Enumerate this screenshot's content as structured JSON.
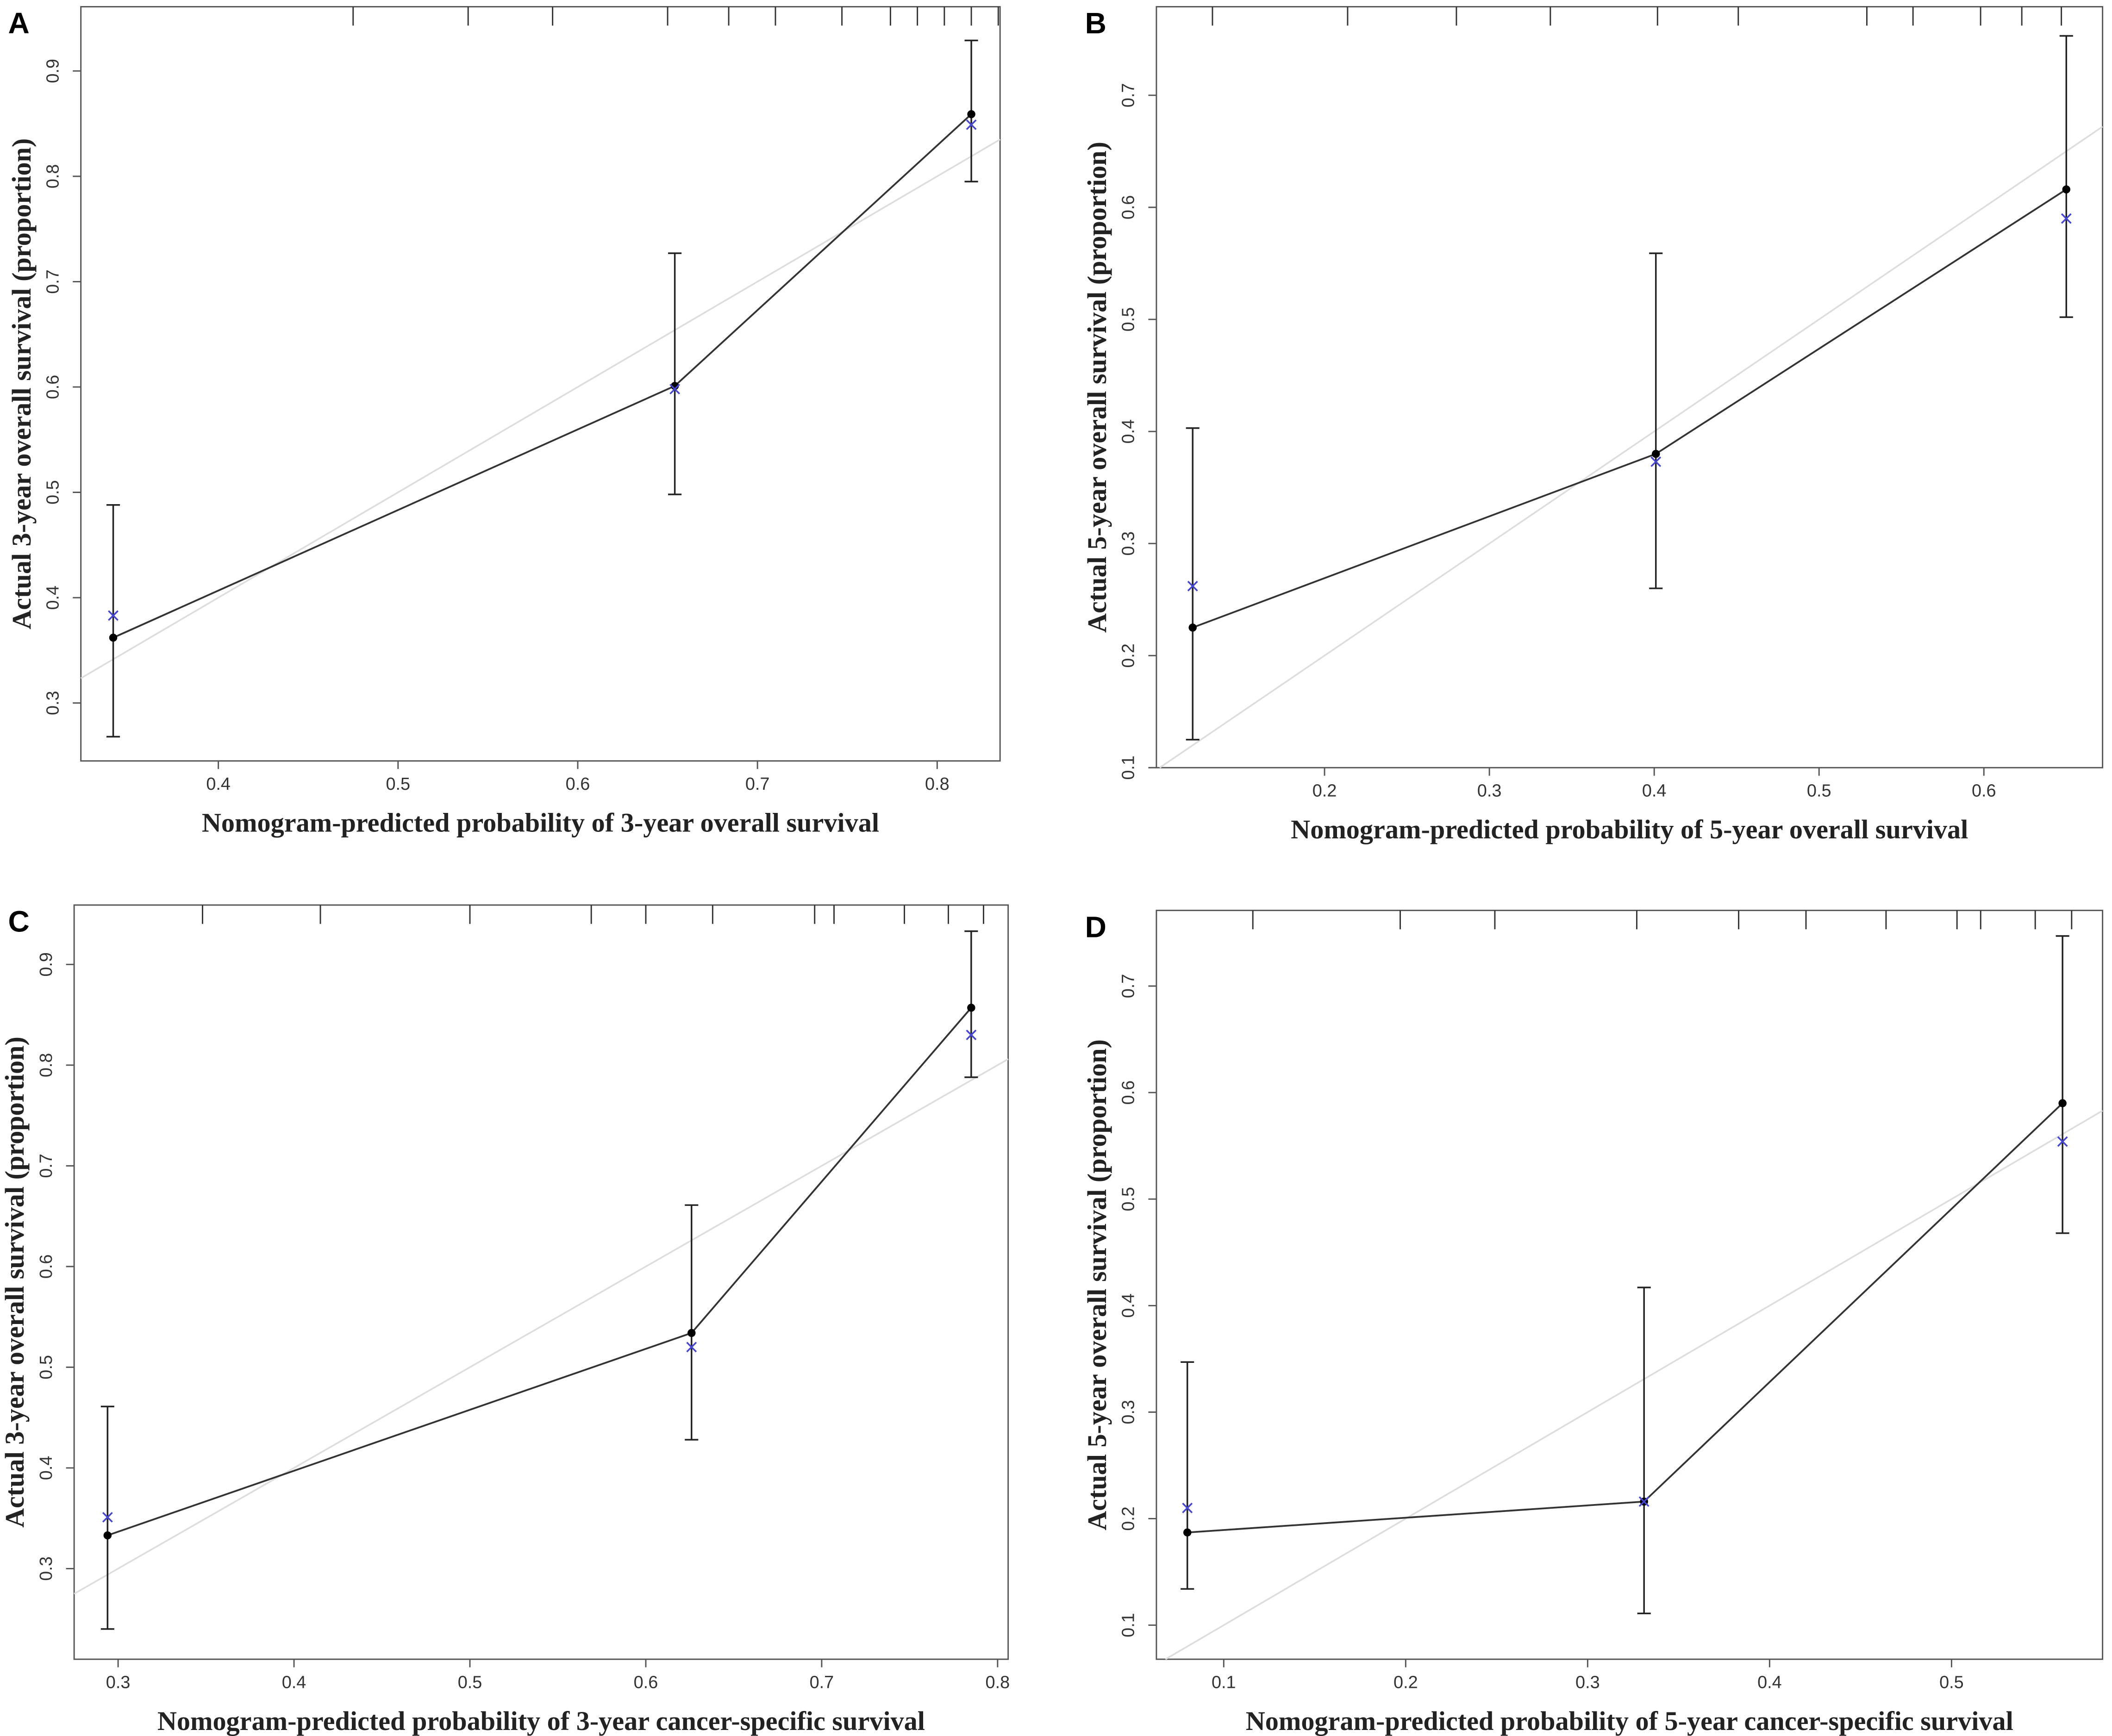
{
  "chart_data": [
    {
      "type": "line",
      "panel": "A",
      "xlabel": "Nomogram-predicted probability of 3-year overall survival",
      "ylabel": "Actual 3-year overall survival (proportion)",
      "xlim": [
        0.3235,
        0.835
      ],
      "ylim": [
        0.245,
        0.961
      ],
      "xticks": [
        0.4,
        0.5,
        0.6,
        0.7,
        0.8
      ],
      "yticks": [
        0.3,
        0.4,
        0.5,
        0.6,
        0.7,
        0.8,
        0.9
      ],
      "x": [
        0.3415,
        0.654,
        0.819
      ],
      "values": [
        0.362,
        0.601,
        0.859
      ],
      "error_low": [
        0.268,
        0.498,
        0.795
      ],
      "error_high": [
        0.488,
        0.727,
        0.929
      ],
      "corrected": [
        0.383,
        0.598,
        0.849
      ],
      "rug": [
        0.475,
        0.539,
        0.586,
        0.65,
        0.684,
        0.71,
        0.747,
        0.774,
        0.789,
        0.804,
        0.819,
        0.834
      ],
      "color": "#333333",
      "corrected_color": "#4444cc",
      "reference_color": "#dddddd"
    },
    {
      "type": "line",
      "panel": "B",
      "xlabel": "Nomogram-predicted probability of 5-year overall survival",
      "ylabel": "Actual 5-year overall survival (proportion)",
      "xlim": [
        0.098,
        0.672
      ],
      "ylim": [
        0.1,
        0.779
      ],
      "xticks": [
        0.2,
        0.3,
        0.4,
        0.5,
        0.6
      ],
      "yticks": [
        0.1,
        0.2,
        0.3,
        0.4,
        0.5,
        0.6,
        0.7
      ],
      "x": [
        0.12,
        0.401,
        0.65
      ],
      "values": [
        0.225,
        0.38,
        0.616
      ],
      "error_low": [
        0.125,
        0.26,
        0.502
      ],
      "error_high": [
        0.403,
        0.559,
        0.753
      ],
      "corrected": [
        0.262,
        0.373,
        0.59
      ],
      "rug": [
        0.132,
        0.214,
        0.28,
        0.337,
        0.402,
        0.451,
        0.529,
        0.557,
        0.598,
        0.623,
        0.647
      ],
      "color": "#333333",
      "corrected_color": "#4444cc",
      "reference_color": "#dddddd"
    },
    {
      "type": "line",
      "panel": "C",
      "xlabel": "Nomogram-predicted probability of 3-year cancer-specific survival",
      "ylabel": "Actual 3-year overall survival (proportion)",
      "xlim": [
        0.275,
        0.806
      ],
      "ylim": [
        0.21,
        0.959
      ],
      "xticks": [
        0.3,
        0.4,
        0.5,
        0.6,
        0.7,
        0.8
      ],
      "yticks": [
        0.3,
        0.4,
        0.5,
        0.6,
        0.7,
        0.8,
        0.9
      ],
      "x": [
        0.294,
        0.626,
        0.785
      ],
      "values": [
        0.333,
        0.534,
        0.857
      ],
      "error_low": [
        0.24,
        0.428,
        0.788
      ],
      "error_high": [
        0.461,
        0.661,
        0.933
      ],
      "corrected": [
        0.351,
        0.52,
        0.83
      ],
      "rug": [
        0.348,
        0.415,
        0.5,
        0.569,
        0.6,
        0.638,
        0.696,
        0.707,
        0.747,
        0.772,
        0.792
      ],
      "color": "#333333",
      "corrected_color": "#4444cc",
      "reference_color": "#dddddd"
    },
    {
      "type": "line",
      "panel": "D",
      "xlabel": "Nomogram-predicted probability of 5-year cancer-specific survival",
      "ylabel": "Actual 5-year overall survival (proportion)",
      "xlim": [
        0.063,
        0.583
      ],
      "ylim": [
        0.068,
        0.771
      ],
      "xticks": [
        0.1,
        0.2,
        0.3,
        0.4,
        0.5
      ],
      "yticks": [
        0.1,
        0.2,
        0.3,
        0.4,
        0.5,
        0.6,
        0.7
      ],
      "x": [
        0.08,
        0.331,
        0.561
      ],
      "values": [
        0.187,
        0.216,
        0.59
      ],
      "error_low": [
        0.134,
        0.111,
        0.468
      ],
      "error_high": [
        0.347,
        0.417,
        0.747
      ],
      "corrected": [
        0.21,
        0.216,
        0.554
      ],
      "rug": [
        0.116,
        0.197,
        0.249,
        0.327,
        0.383,
        0.42,
        0.464,
        0.503,
        0.516,
        0.546,
        0.566
      ],
      "color": "#333333",
      "corrected_color": "#4444cc",
      "reference_color": "#dddddd"
    }
  ]
}
